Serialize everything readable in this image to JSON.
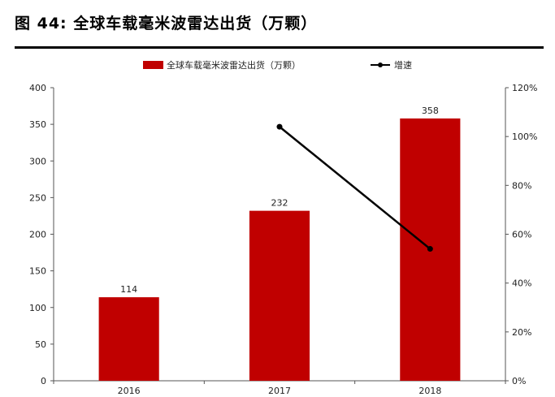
{
  "figure_title": "图 44: 全球车载毫米波雷达出货（万颗）",
  "colors": {
    "bar": "#c00000",
    "line": "#000000",
    "axis": "#555555"
  },
  "chart_data": {
    "type": "bar",
    "categories": [
      "2016",
      "2017",
      "2018"
    ],
    "series": [
      {
        "name": "全球车载毫米波雷达出货（万颗）",
        "type": "bar",
        "axis": "left",
        "values": [
          114,
          232,
          358
        ],
        "data_labels": [
          "114",
          "232",
          "358"
        ]
      },
      {
        "name": "增速",
        "type": "line",
        "axis": "right",
        "values": [
          null,
          104,
          54
        ]
      }
    ],
    "y_left": {
      "min": 0,
      "max": 400,
      "step": 50,
      "ticks": [
        "0",
        "50",
        "100",
        "150",
        "200",
        "250",
        "300",
        "350",
        "400"
      ]
    },
    "y_right": {
      "min": 0,
      "max": 120,
      "step": 20,
      "ticks": [
        "0%",
        "20%",
        "40%",
        "60%",
        "80%",
        "100%",
        "120%"
      ]
    },
    "legend": {
      "position": "top",
      "entries": [
        "全球车载毫米波雷达出货（万颗）",
        "增速"
      ]
    },
    "grid": false
  }
}
